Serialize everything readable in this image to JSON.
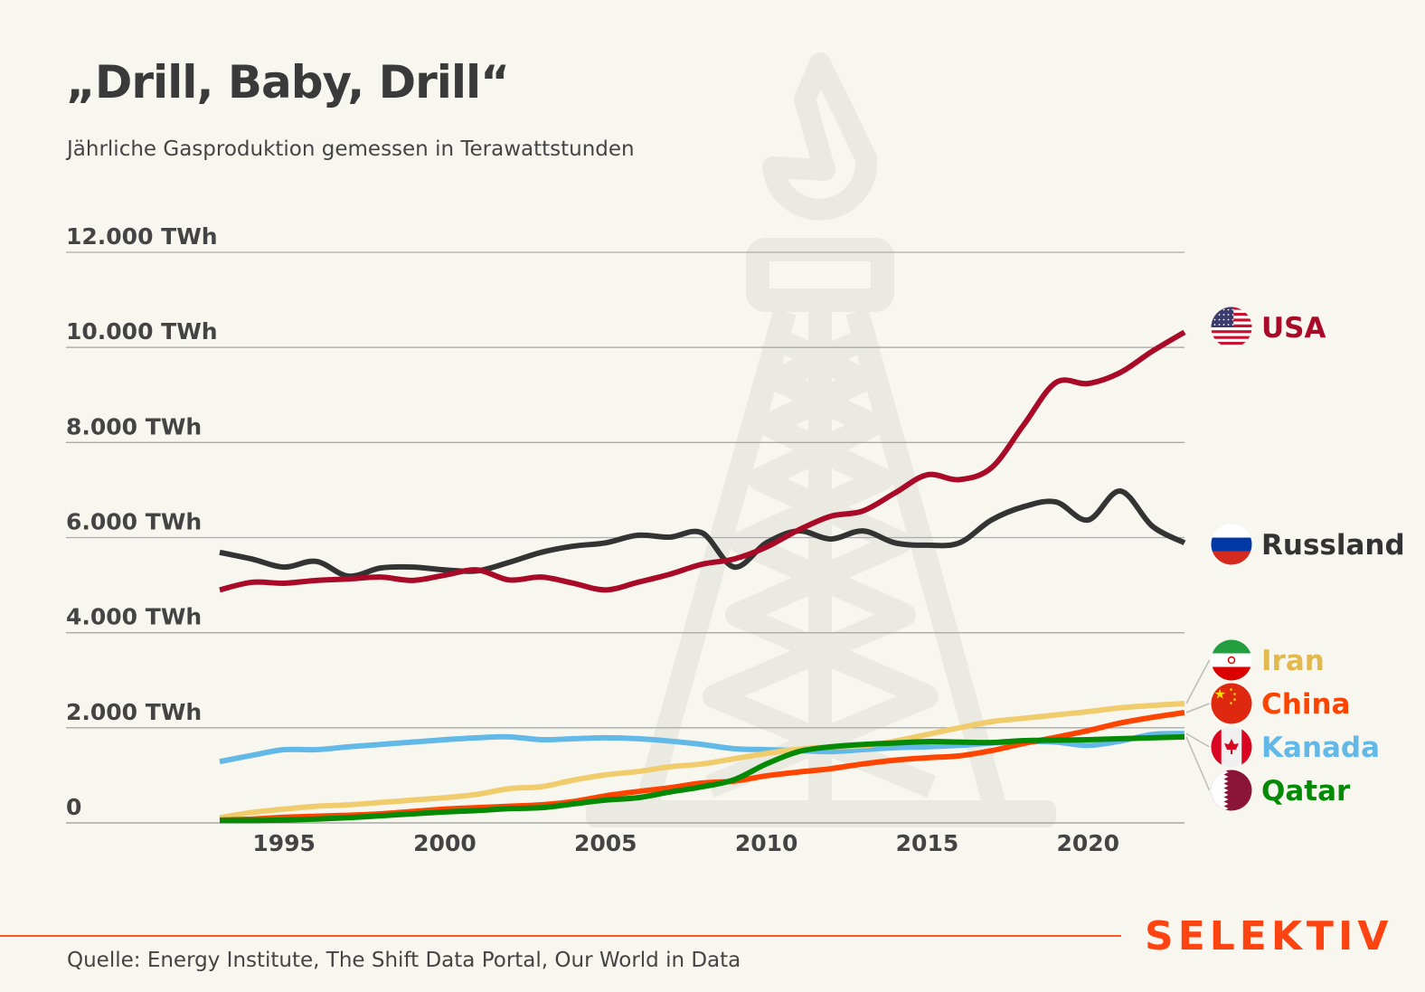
{
  "title": "„Drill, Baby, Drill“",
  "subtitle": "Jährliche Gasproduktion gemessen in Terawattstunden",
  "source": "Quelle: Energy Institute, The Shift Data Portal, Our World in Data",
  "brand": "SELEKTIV",
  "colors": {
    "background": "#f8f7ef",
    "brand": "#ff4411",
    "watermark": "#ebeae2"
  },
  "chart_data": {
    "type": "line",
    "title": "„Drill, Baby, Drill“",
    "subtitle": "Jährliche Gasproduktion gemessen in Terawattstunden",
    "xlabel": "",
    "ylabel": "",
    "xlim": [
      1993,
      2023
    ],
    "ylim": [
      0,
      12000
    ],
    "grid": true,
    "legend": "right (direct labels with flags)",
    "y_ticks": [
      {
        "value": 0,
        "label": "0"
      },
      {
        "value": 2000,
        "label": "2.000 TWh"
      },
      {
        "value": 4000,
        "label": "4.000 TWh"
      },
      {
        "value": 6000,
        "label": "6.000 TWh"
      },
      {
        "value": 8000,
        "label": "8.000 TWh"
      },
      {
        "value": 10000,
        "label": "10.000 TWh"
      },
      {
        "value": 12000,
        "label": "12.000 TWh"
      }
    ],
    "x_ticks": [
      {
        "value": 1995,
        "label": "1995"
      },
      {
        "value": 2000,
        "label": "2000"
      },
      {
        "value": 2005,
        "label": "2005"
      },
      {
        "value": 2010,
        "label": "2010"
      },
      {
        "value": 2015,
        "label": "2015"
      },
      {
        "value": 2020,
        "label": "2020"
      }
    ],
    "x": [
      1993,
      1994,
      1995,
      1996,
      1997,
      1998,
      1999,
      2000,
      2001,
      2002,
      2003,
      2004,
      2005,
      2006,
      2007,
      2008,
      2009,
      2010,
      2011,
      2012,
      2013,
      2014,
      2015,
      2016,
      2017,
      2018,
      2019,
      2020,
      2021,
      2022,
      2023
    ],
    "series": [
      {
        "name": "USA",
        "color": "#a80a28",
        "flag": "usa-flag",
        "values": [
          4900,
          5060,
          5040,
          5100,
          5130,
          5170,
          5100,
          5210,
          5320,
          5110,
          5170,
          5040,
          4900,
          5060,
          5230,
          5440,
          5550,
          5800,
          6160,
          6450,
          6560,
          6940,
          7320,
          7220,
          7470,
          8370,
          9260,
          9240,
          9470,
          9920,
          10320
        ]
      },
      {
        "name": "Russland",
        "color": "#333333",
        "flag": "russia-flag",
        "values": [
          5690,
          5550,
          5380,
          5500,
          5190,
          5360,
          5380,
          5320,
          5300,
          5480,
          5690,
          5820,
          5890,
          6050,
          6010,
          6100,
          5380,
          5890,
          6140,
          5970,
          6140,
          5890,
          5840,
          5890,
          6370,
          6650,
          6750,
          6370,
          6980,
          6240,
          5890
        ]
      },
      {
        "name": "Iran",
        "color": "#e2b94f",
        "line_color": "#f0cc6c",
        "flag": "iran-flag",
        "values": [
          110,
          220,
          290,
          350,
          380,
          430,
          480,
          530,
          600,
          720,
          760,
          900,
          1010,
          1080,
          1180,
          1240,
          1350,
          1460,
          1550,
          1600,
          1620,
          1720,
          1860,
          2000,
          2130,
          2200,
          2270,
          2340,
          2420,
          2470,
          2510
        ]
      },
      {
        "name": "China",
        "color": "#ff4400",
        "flag": "china-flag",
        "values": [
          60,
          80,
          120,
          140,
          160,
          190,
          240,
          290,
          320,
          350,
          380,
          450,
          570,
          660,
          740,
          840,
          880,
          990,
          1070,
          1140,
          1240,
          1320,
          1370,
          1410,
          1520,
          1670,
          1800,
          1940,
          2100,
          2220,
          2320
        ]
      },
      {
        "name": "Kanada",
        "color": "#62b8e6",
        "flag": "canada-flag",
        "values": [
          1290,
          1420,
          1540,
          1540,
          1600,
          1650,
          1700,
          1750,
          1790,
          1810,
          1750,
          1770,
          1790,
          1770,
          1720,
          1650,
          1560,
          1540,
          1520,
          1500,
          1540,
          1580,
          1600,
          1630,
          1680,
          1710,
          1700,
          1630,
          1720,
          1860,
          1880
        ]
      },
      {
        "name": "Qatar",
        "color": "#058a05",
        "flag": "qatar-flag",
        "values": [
          50,
          50,
          60,
          80,
          110,
          150,
          190,
          230,
          260,
          300,
          320,
          400,
          480,
          530,
          650,
          760,
          910,
          1240,
          1500,
          1600,
          1650,
          1680,
          1710,
          1700,
          1690,
          1730,
          1740,
          1750,
          1770,
          1790,
          1810
        ]
      }
    ]
  }
}
